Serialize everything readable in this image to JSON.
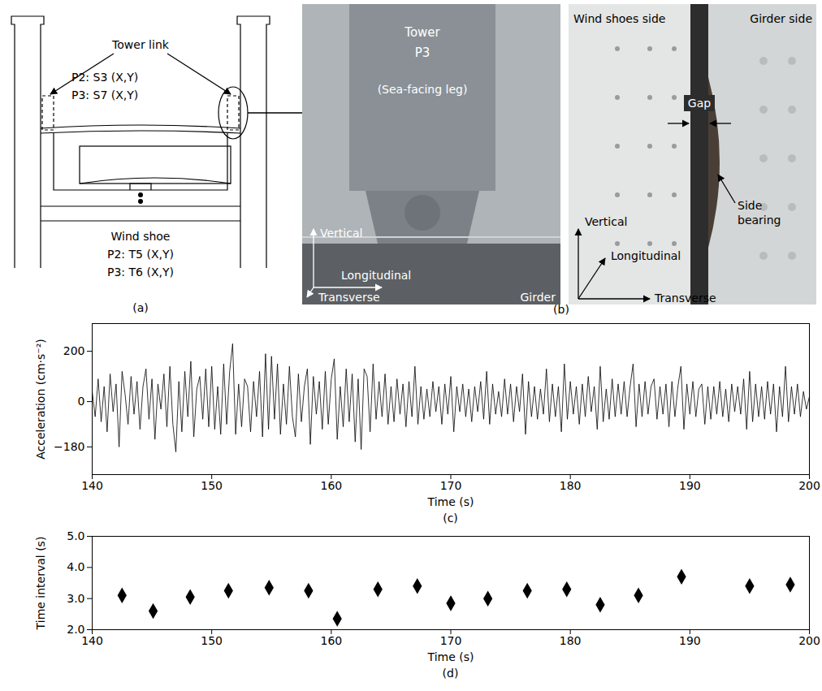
{
  "figure": {
    "panel_a": {
      "caption": "(a)",
      "tower_link": "Tower link",
      "link_sensors": [
        "P2: S3 (X,Y)",
        "P3: S7 (X,Y)"
      ],
      "wind_shoe": "Wind shoe",
      "shoe_sensors": [
        "P2: T5 (X,Y)",
        "P3: T6 (X,Y)"
      ]
    },
    "panel_b": {
      "caption": "(b)",
      "photo_1": {
        "tower": "Tower",
        "pier": "P3",
        "leg": "(Sea-facing leg)",
        "girder": "Girder",
        "axes": [
          "Vertical",
          "Longitudinal",
          "Transverse"
        ]
      },
      "photo_2": {
        "left": "Wind shoes side",
        "right": "Girder side",
        "gap": "Gap",
        "bearing": "Side bearing",
        "axes": [
          "Vertical",
          "Longitudinal",
          "Transverse"
        ]
      }
    }
  },
  "chart_data": [
    {
      "type": "line",
      "caption": "(c)",
      "x_label": "Time (s)",
      "y_label": "Acceleration (cm·s⁻²)",
      "color": "#000000",
      "xlim": [
        140,
        200
      ],
      "xticks": [
        140,
        150,
        160,
        170,
        180,
        190,
        200
      ],
      "ylim": [
        -290,
        310
      ],
      "yticks": [
        -180,
        0,
        200
      ],
      "x": [
        140,
        140.25,
        140.5,
        140.75,
        141,
        141.25,
        141.5,
        141.75,
        142,
        142.25,
        142.5,
        142.75,
        143,
        143.25,
        143.5,
        143.75,
        144,
        144.25,
        144.5,
        144.75,
        145,
        145.25,
        145.5,
        145.75,
        146,
        146.25,
        146.5,
        146.75,
        147,
        147.25,
        147.5,
        147.75,
        148,
        148.25,
        148.5,
        148.75,
        149,
        149.25,
        149.5,
        149.75,
        150,
        150.25,
        150.5,
        150.75,
        151,
        151.25,
        151.5,
        151.75,
        152,
        152.25,
        152.5,
        152.75,
        153,
        153.25,
        153.5,
        153.75,
        154,
        154.25,
        154.5,
        154.75,
        155,
        155.25,
        155.5,
        155.75,
        156,
        156.25,
        156.5,
        156.75,
        157,
        157.25,
        157.5,
        157.75,
        158,
        158.25,
        158.5,
        158.75,
        159,
        159.25,
        159.5,
        159.75,
        160,
        160.25,
        160.5,
        160.75,
        161,
        161.25,
        161.5,
        161.75,
        162,
        162.25,
        162.5,
        162.75,
        163,
        163.25,
        163.5,
        163.75,
        164,
        164.25,
        164.5,
        164.75,
        165,
        165.25,
        165.5,
        165.75,
        166,
        166.25,
        166.5,
        166.75,
        167,
        167.25,
        167.5,
        167.75,
        168,
        168.25,
        168.5,
        168.75,
        169,
        169.25,
        169.5,
        169.75,
        170,
        170.25,
        170.5,
        170.75,
        171,
        171.25,
        171.5,
        171.75,
        172,
        172.25,
        172.5,
        172.75,
        173,
        173.25,
        173.5,
        173.75,
        174,
        174.25,
        174.5,
        174.75,
        175,
        175.25,
        175.5,
        175.75,
        176,
        176.25,
        176.5,
        176.75,
        177,
        177.25,
        177.5,
        177.75,
        178,
        178.25,
        178.5,
        178.75,
        179,
        179.25,
        179.5,
        179.75,
        180,
        180.25,
        180.5,
        180.75,
        181,
        181.25,
        181.5,
        181.75,
        182,
        182.25,
        182.5,
        182.75,
        183,
        183.25,
        183.5,
        183.75,
        184,
        184.25,
        184.5,
        184.75,
        185,
        185.25,
        185.5,
        185.75,
        186,
        186.25,
        186.5,
        186.75,
        187,
        187.25,
        187.5,
        187.75,
        188,
        188.25,
        188.5,
        188.75,
        189,
        189.25,
        189.5,
        189.75,
        190,
        190.25,
        190.5,
        190.75,
        191,
        191.25,
        191.5,
        191.75,
        192,
        192.25,
        192.5,
        192.75,
        193,
        193.25,
        193.5,
        193.75,
        194,
        194.25,
        194.5,
        194.75,
        195,
        195.25,
        195.5,
        195.75,
        196,
        196.25,
        196.5,
        196.75,
        197,
        197.25,
        197.5,
        197.75,
        198,
        198.25,
        198.5,
        198.75,
        199,
        199.25,
        199.5,
        199.75,
        200
      ],
      "values": [
        40,
        -60,
        90,
        -80,
        60,
        -120,
        110,
        -40,
        70,
        -180,
        120,
        30,
        -90,
        100,
        -50,
        80,
        -110,
        60,
        130,
        -70,
        90,
        -150,
        70,
        -30,
        110,
        -100,
        140,
        -90,
        -200,
        80,
        -120,
        120,
        -60,
        160,
        -140,
        50,
        100,
        -70,
        130,
        -100,
        140,
        -110,
        60,
        -130,
        150,
        -90,
        120,
        230,
        -130,
        70,
        -100,
        90,
        60,
        -120,
        80,
        -60,
        120,
        -140,
        190,
        -110,
        180,
        -70,
        150,
        -130,
        70,
        -90,
        140,
        -60,
        -140,
        110,
        -80,
        60,
        130,
        -170,
        100,
        -50,
        80,
        -110,
        120,
        -90,
        90,
        170,
        -150,
        60,
        -100,
        130,
        -80,
        110,
        -160,
        90,
        -190,
        130,
        100,
        -120,
        150,
        -70,
        80,
        -60,
        110,
        -90,
        60,
        -80,
        90,
        -50,
        70,
        -100,
        80,
        -60,
        140,
        -90,
        60,
        -70,
        50,
        -60,
        80,
        -40,
        60,
        -90,
        70,
        -50,
        100,
        -120,
        60,
        -40,
        70,
        -60,
        50,
        -80,
        60,
        -40,
        80,
        -70,
        120,
        -90,
        70,
        -50,
        40,
        -60,
        90,
        -50,
        70,
        -80,
        60,
        -40,
        110,
        -130,
        80,
        -60,
        60,
        -70,
        50,
        -50,
        130,
        -80,
        70,
        -60,
        60,
        -120,
        150,
        -70,
        80,
        -50,
        60,
        -90,
        70,
        -60,
        100,
        -40,
        60,
        -110,
        140,
        -80,
        50,
        -70,
        90,
        -60,
        70,
        -50,
        80,
        -60,
        60,
        150,
        -100,
        70,
        -60,
        80,
        -50,
        60,
        90,
        -70,
        60,
        -50,
        70,
        -100,
        80,
        -60,
        60,
        140,
        -110,
        70,
        -50,
        80,
        -60,
        50,
        70,
        -90,
        60,
        -70,
        60,
        -50,
        80,
        -60,
        50,
        -80,
        70,
        -40,
        60,
        -50,
        90,
        -110,
        120,
        -80,
        70,
        -60,
        60,
        -70,
        80,
        -50,
        70,
        -120,
        60,
        -60,
        140,
        -80,
        60,
        -50,
        70,
        -60,
        40,
        -30,
        20
      ]
    },
    {
      "type": "scatter",
      "caption": "(d)",
      "x_label": "Time (s)",
      "y_label": "Time interval (s)",
      "color": "#000000",
      "marker": "diamond",
      "xlim": [
        140,
        200
      ],
      "xticks": [
        140,
        150,
        160,
        170,
        180,
        190,
        200
      ],
      "ylim": [
        2,
        5
      ],
      "yticks": [
        2,
        3,
        4,
        5
      ],
      "x": [
        142.5,
        145.1,
        148.2,
        151.4,
        154.8,
        158.1,
        160.5,
        163.9,
        167.2,
        170.0,
        173.1,
        176.4,
        179.7,
        182.5,
        185.7,
        189.3,
        195.0,
        198.4
      ],
      "values": [
        3.1,
        2.6,
        3.05,
        3.25,
        3.35,
        3.25,
        2.35,
        3.3,
        3.4,
        2.85,
        3.0,
        3.25,
        3.3,
        2.8,
        3.1,
        3.7,
        3.4,
        3.45
      ]
    }
  ]
}
